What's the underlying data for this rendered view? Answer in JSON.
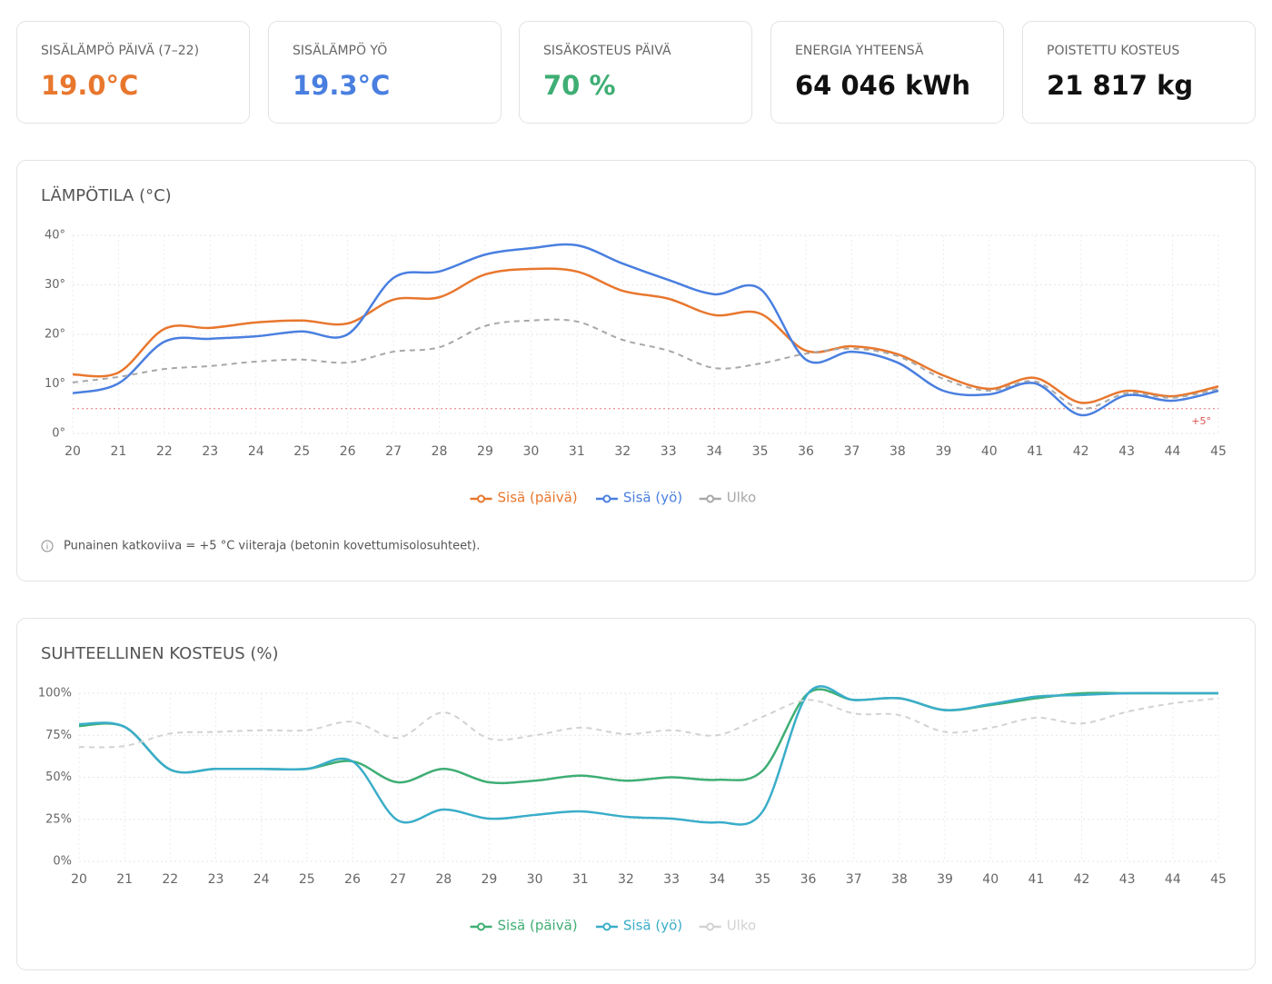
{
  "cards": [
    {
      "label": "SISÄLÄMPÖ PÄIVÄ (7–22)",
      "value": "19.0°C",
      "color": "#e8772e"
    },
    {
      "label": "SISÄLÄMPÖ YÖ",
      "value": "19.3°C",
      "color": "#4a7fe0"
    },
    {
      "label": "SISÄKOSTEUS PÄIVÄ",
      "value": "70 %",
      "color": "#3fae74"
    },
    {
      "label": "ENERGIA YHTEENSÄ",
      "value": "64 046 kWh",
      "color": "#111111"
    },
    {
      "label": "POISTETTU KOSTEUS",
      "value": "21 817 kg",
      "color": "#111111"
    }
  ],
  "chart_data": [
    {
      "type": "line",
      "title": "LÄMPÖTILA (°C)",
      "categories": [
        "20",
        "21",
        "22",
        "23",
        "24",
        "25",
        "26",
        "27",
        "28",
        "29",
        "30",
        "31",
        "32",
        "33",
        "34",
        "35",
        "36",
        "37",
        "38",
        "39",
        "40",
        "41",
        "42",
        "43",
        "44",
        "45"
      ],
      "series": [
        {
          "name": "Sisä (päivä)",
          "color": "#e8772e",
          "values": [
            11.9,
            12.3,
            21.1,
            21.3,
            22.4,
            22.8,
            22.2,
            27,
            27.5,
            32.1,
            33.2,
            32.7,
            28.8,
            27.2,
            23.9,
            24.2,
            16.7,
            17.6,
            16,
            11.7,
            9,
            11.2,
            6.2,
            8.6,
            7.5,
            9.5
          ]
        },
        {
          "name": "Sisä (yö)",
          "color": "#4a7fe0",
          "values": [
            8.1,
            10.1,
            18.5,
            19.1,
            19.6,
            20.6,
            20,
            31.4,
            32.7,
            36.1,
            37.4,
            38,
            34.3,
            31,
            28.1,
            29.2,
            14.9,
            16.5,
            14.3,
            8.6,
            7.9,
            10.1,
            3.7,
            7.7,
            6.6,
            8.6
          ]
        },
        {
          "name": "Ulko",
          "color": "#a8a8a8",
          "dashed": true,
          "values": [
            10.3,
            11.4,
            13,
            13.6,
            14.5,
            14.9,
            14.3,
            16.5,
            17.4,
            21.7,
            22.8,
            22.6,
            18.9,
            16.7,
            13.2,
            14.1,
            16.1,
            17.1,
            15.6,
            11,
            8.6,
            10.5,
            5,
            8.1,
            7.2,
            9
          ]
        }
      ],
      "ylim": [
        0,
        40
      ],
      "yticks": [
        {
          "value": 0,
          "label": "0°"
        },
        {
          "value": 10,
          "label": "10°"
        },
        {
          "value": 20,
          "label": "20°"
        },
        {
          "value": 30,
          "label": "30°"
        },
        {
          "value": 40,
          "label": "40°"
        }
      ],
      "grid": true,
      "ref_line": {
        "value": 5,
        "label": "+5°",
        "color": "#e57373"
      },
      "note": "Punainen katkoviiva = +5 °C viiteraja (betonin kovettumisolosuhteet)."
    },
    {
      "type": "line",
      "title": "SUHTEELLINEN KOSTEUS (%)",
      "categories": [
        "20",
        "21",
        "22",
        "23",
        "24",
        "25",
        "26",
        "27",
        "28",
        "29",
        "30",
        "31",
        "32",
        "33",
        "34",
        "35",
        "36",
        "37",
        "38",
        "39",
        "40",
        "41",
        "42",
        "43",
        "44",
        "45"
      ],
      "series": [
        {
          "name": "Sisä (päivä)",
          "color": "#3fae74",
          "values": [
            80.5,
            80,
            54.6,
            55,
            55,
            55,
            59.5,
            47,
            55,
            47,
            48,
            51,
            48,
            50,
            48.5,
            54,
            100,
            96,
            97,
            90,
            93,
            97,
            100,
            100,
            100,
            100
          ]
        },
        {
          "name": "Sisä (yö)",
          "color": "#3aadc9",
          "values": [
            81.6,
            80,
            54.6,
            55,
            55,
            55,
            59.5,
            24.3,
            30.8,
            25.4,
            27.6,
            29.7,
            26.5,
            25.4,
            23.2,
            29.7,
            100,
            96,
            97,
            90,
            93.5,
            98,
            99,
            100,
            100,
            100
          ]
        },
        {
          "name": "Ulko",
          "color": "#d2d2d2",
          "dashed": true,
          "values": [
            68,
            68.6,
            76,
            77,
            78,
            78,
            83,
            73.5,
            88.6,
            73,
            75,
            79.5,
            75.7,
            78,
            75,
            86,
            96,
            88,
            87,
            77,
            79.5,
            85.4,
            82,
            89,
            94,
            97
          ]
        }
      ],
      "ylim": [
        0,
        100
      ],
      "yticks": [
        {
          "value": 0,
          "label": "0%"
        },
        {
          "value": 25,
          "label": "25%"
        },
        {
          "value": 50,
          "label": "50%"
        },
        {
          "value": 75,
          "label": "75%"
        },
        {
          "value": 100,
          "label": "100%"
        }
      ],
      "grid": true
    }
  ]
}
